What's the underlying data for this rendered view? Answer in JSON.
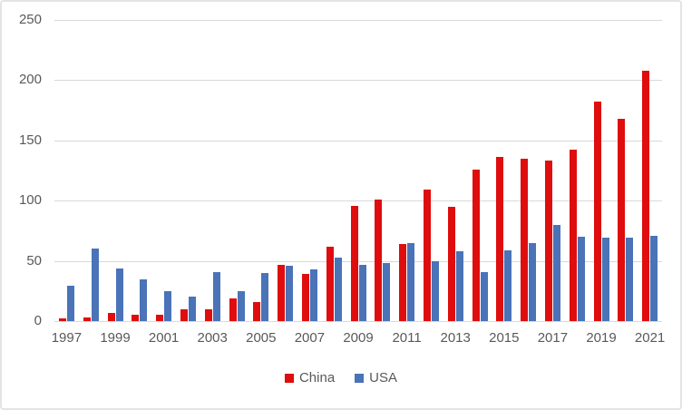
{
  "chart_data": {
    "type": "bar",
    "categories": [
      "1997",
      "1998",
      "1999",
      "2000",
      "2001",
      "2002",
      "2003",
      "2004",
      "2005",
      "2006",
      "2007",
      "2008",
      "2009",
      "2010",
      "2011",
      "2012",
      "2013",
      "2014",
      "2015",
      "2016",
      "2017",
      "2018",
      "2019",
      "2020",
      "2021"
    ],
    "series": [
      {
        "name": "China",
        "color": "#df0d0d",
        "values": [
          2,
          3,
          7,
          5,
          5,
          10,
          10,
          19,
          16,
          47,
          39,
          62,
          96,
          101,
          64,
          109,
          95,
          126,
          136,
          135,
          133,
          142,
          182,
          168,
          208
        ]
      },
      {
        "name": "USA",
        "color": "#4a73b8",
        "values": [
          29,
          60,
          44,
          35,
          25,
          20,
          41,
          25,
          40,
          46,
          43,
          53,
          47,
          48,
          65,
          50,
          58,
          41,
          59,
          65,
          80,
          70,
          69,
          69,
          71
        ]
      }
    ],
    "ylim": [
      0,
      250
    ],
    "yticks": [
      0,
      50,
      100,
      150,
      200,
      250
    ],
    "xtick_labels": [
      "1997",
      "1999",
      "2001",
      "2003",
      "2005",
      "2007",
      "2009",
      "2011",
      "2013",
      "2015",
      "2017",
      "2019",
      "2021"
    ],
    "grid": "horizontal",
    "legend_position": "bottom",
    "gridline_color": "#d9d9d9",
    "axis_text_color": "#595959",
    "background_color": "#ffffff"
  }
}
